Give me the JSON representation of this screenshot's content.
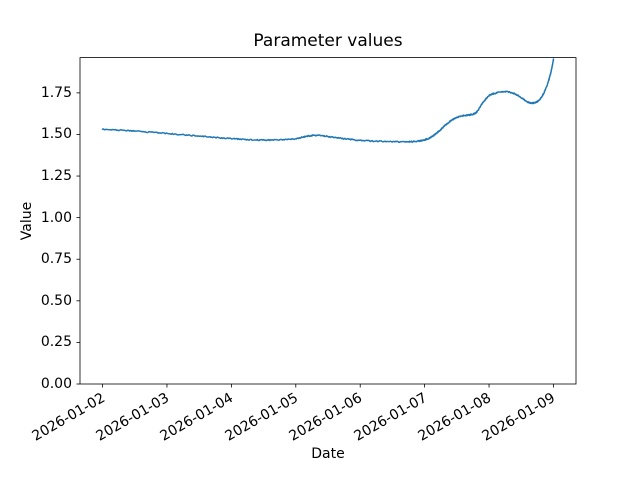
{
  "chart_data": {
    "type": "line",
    "title": "Parameter values",
    "xlabel": "Date",
    "ylabel": "Value",
    "grid": false,
    "legend": null,
    "line_color": "#1f77b4",
    "line_width": 1.5,
    "noise_amplitude": 0.0035,
    "x_start_date": "2026-01-02",
    "x_tick_labels": [
      "2026-01-02",
      "2026-01-03",
      "2026-01-04",
      "2026-01-05",
      "2026-01-06",
      "2026-01-07",
      "2026-01-08",
      "2026-01-09"
    ],
    "x_tick_rotation_deg": 30,
    "xlim_days": [
      -0.35,
      7.35
    ],
    "y_ticks": [
      0.0,
      0.25,
      0.5,
      0.75,
      1.0,
      1.25,
      1.5,
      1.75
    ],
    "y_tick_labels": [
      "0.00",
      "0.25",
      "0.50",
      "0.75",
      "1.00",
      "1.25",
      "1.50",
      "1.75"
    ],
    "ylim": [
      0,
      1.962
    ],
    "points": [
      [
        0.0,
        1.531
      ],
      [
        0.25,
        1.526
      ],
      [
        0.5,
        1.52
      ],
      [
        0.75,
        1.513
      ],
      [
        1.0,
        1.506
      ],
      [
        1.25,
        1.498
      ],
      [
        1.5,
        1.49
      ],
      [
        1.75,
        1.482
      ],
      [
        2.0,
        1.475
      ],
      [
        2.25,
        1.469
      ],
      [
        2.5,
        1.466
      ],
      [
        2.75,
        1.468
      ],
      [
        3.0,
        1.475
      ],
      [
        3.15,
        1.488
      ],
      [
        3.3,
        1.495
      ],
      [
        3.45,
        1.49
      ],
      [
        3.65,
        1.48
      ],
      [
        3.85,
        1.47
      ],
      [
        4.05,
        1.463
      ],
      [
        4.3,
        1.459
      ],
      [
        4.55,
        1.456
      ],
      [
        4.75,
        1.456
      ],
      [
        4.9,
        1.46
      ],
      [
        5.0,
        1.468
      ],
      [
        5.1,
        1.483
      ],
      [
        5.2,
        1.512
      ],
      [
        5.3,
        1.548
      ],
      [
        5.4,
        1.58
      ],
      [
        5.5,
        1.602
      ],
      [
        5.6,
        1.613
      ],
      [
        5.7,
        1.618
      ],
      [
        5.8,
        1.632
      ],
      [
        5.9,
        1.688
      ],
      [
        6.0,
        1.733
      ],
      [
        6.1,
        1.748
      ],
      [
        6.25,
        1.757
      ],
      [
        6.4,
        1.744
      ],
      [
        6.5,
        1.722
      ],
      [
        6.6,
        1.695
      ],
      [
        6.67,
        1.688
      ],
      [
        6.75,
        1.698
      ],
      [
        6.82,
        1.728
      ],
      [
        6.88,
        1.775
      ],
      [
        6.93,
        1.83
      ],
      [
        6.97,
        1.89
      ],
      [
        7.0,
        1.952
      ]
    ]
  },
  "layout_hints": {
    "axes_background": "#ffffff",
    "spine_color": "#000000"
  }
}
